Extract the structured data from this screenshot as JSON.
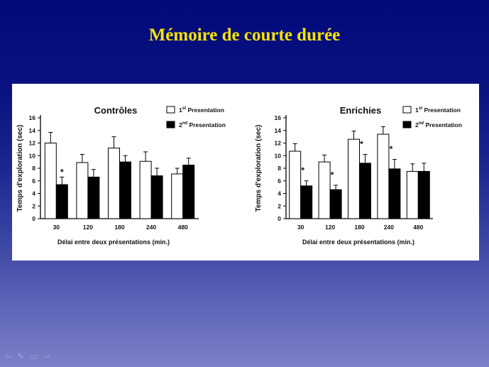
{
  "slide": {
    "title": "Mémoire de courte durée"
  },
  "nav": {
    "prev": "⇦",
    "pen": "✎",
    "menu": "▭",
    "next": "⇨"
  },
  "chart_data": [
    {
      "type": "bar",
      "title": "Contrôles",
      "xlabel": "Délai entre deux présentations (min.)",
      "ylabel": "Temps d'exploration (sec)",
      "categories": [
        "30",
        "120",
        "180",
        "240",
        "480"
      ],
      "ylim": [
        0,
        16
      ],
      "yticks": [
        0,
        2,
        4,
        6,
        8,
        10,
        12,
        14,
        16
      ],
      "legend_position": "top-right",
      "series": [
        {
          "name": "1st Presentation",
          "sup": "st",
          "base": "1",
          "rest": " Presentation",
          "color": "#ffffff",
          "values": [
            12.0,
            8.9,
            11.2,
            9.1,
            7.1
          ],
          "errors": [
            1.7,
            1.3,
            1.8,
            1.5,
            0.9
          ]
        },
        {
          "name": "2nd Presentation",
          "sup": "nd",
          "base": "2",
          "rest": " Presentation",
          "color": "#000000",
          "values": [
            5.4,
            6.6,
            9.0,
            6.8,
            8.5
          ],
          "errors": [
            1.2,
            1.2,
            1.0,
            1.2,
            1.1
          ]
        }
      ],
      "significance": [
        {
          "category": "30",
          "series": 1,
          "label": "*"
        }
      ]
    },
    {
      "type": "bar",
      "title": "Enrichies",
      "xlabel": "Délai entre deux présentations (min.)",
      "ylabel": "Temps d'exploration (sec)",
      "categories": [
        "30",
        "120",
        "180",
        "240",
        "480"
      ],
      "ylim": [
        0,
        16
      ],
      "yticks": [
        0,
        2,
        4,
        6,
        8,
        10,
        12,
        14,
        16
      ],
      "legend_position": "top-right",
      "series": [
        {
          "name": "1st Presentation",
          "sup": "st",
          "base": "1",
          "rest": " Presentation",
          "color": "#ffffff",
          "values": [
            10.7,
            9.0,
            12.6,
            13.4,
            7.5
          ],
          "errors": [
            1.2,
            1.1,
            1.3,
            1.2,
            1.2
          ]
        },
        {
          "name": "2nd Presentation",
          "sup": "nd",
          "base": "2",
          "rest": " Presentation",
          "color": "#000000",
          "values": [
            5.2,
            4.6,
            8.8,
            7.9,
            7.5
          ],
          "errors": [
            0.8,
            0.7,
            1.4,
            1.5,
            1.3
          ]
        }
      ],
      "significance": [
        {
          "category": "30",
          "series": 1,
          "label": "*"
        },
        {
          "category": "120",
          "series": 1,
          "label": "*"
        },
        {
          "category": "180",
          "series": 1,
          "label": "*"
        },
        {
          "category": "240",
          "series": 1,
          "label": "*"
        }
      ]
    }
  ]
}
